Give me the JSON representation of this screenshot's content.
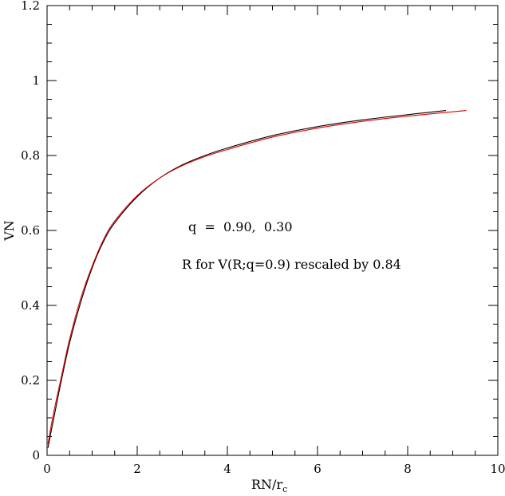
{
  "chart_data": {
    "type": "line",
    "xlabel": "RN/r",
    "xlabel_subscript": "c",
    "ylabel": "VN",
    "xlim": [
      0,
      10
    ],
    "ylim": [
      0,
      1.2
    ],
    "x_ticks": [
      "0",
      "2",
      "4",
      "6",
      "8",
      "10"
    ],
    "y_ticks": [
      "0",
      "0.2",
      "0.4",
      "0.6",
      "0.8",
      "1",
      "1.2"
    ],
    "grid": false,
    "annotations": [
      "q  =  0.90,  0.30",
      "R for V(R;q=0.9) rescaled by 0.84"
    ],
    "series": [
      {
        "color": "#000000",
        "x": [
          0.02,
          0.1,
          0.2,
          0.3,
          0.5,
          0.75,
          1.0,
          1.25,
          1.5,
          2.0,
          2.5,
          3.0,
          3.5,
          4.0,
          5.0,
          6.0,
          7.0,
          8.0,
          8.85
        ],
        "y": [
          0.02,
          0.07,
          0.13,
          0.19,
          0.3,
          0.41,
          0.5,
          0.57,
          0.62,
          0.69,
          0.74,
          0.775,
          0.8,
          0.82,
          0.853,
          0.877,
          0.895,
          0.909,
          0.92
        ]
      },
      {
        "color": "#e00000",
        "x": [
          0.02,
          0.1,
          0.2,
          0.3,
          0.5,
          0.75,
          1.0,
          1.25,
          1.5,
          2.0,
          2.5,
          3.0,
          3.5,
          4.0,
          5.0,
          6.0,
          7.0,
          8.0,
          9.3
        ],
        "y": [
          0.03,
          0.085,
          0.145,
          0.2,
          0.31,
          0.42,
          0.505,
          0.575,
          0.625,
          0.693,
          0.74,
          0.773,
          0.797,
          0.816,
          0.849,
          0.873,
          0.891,
          0.905,
          0.92
        ]
      }
    ]
  }
}
